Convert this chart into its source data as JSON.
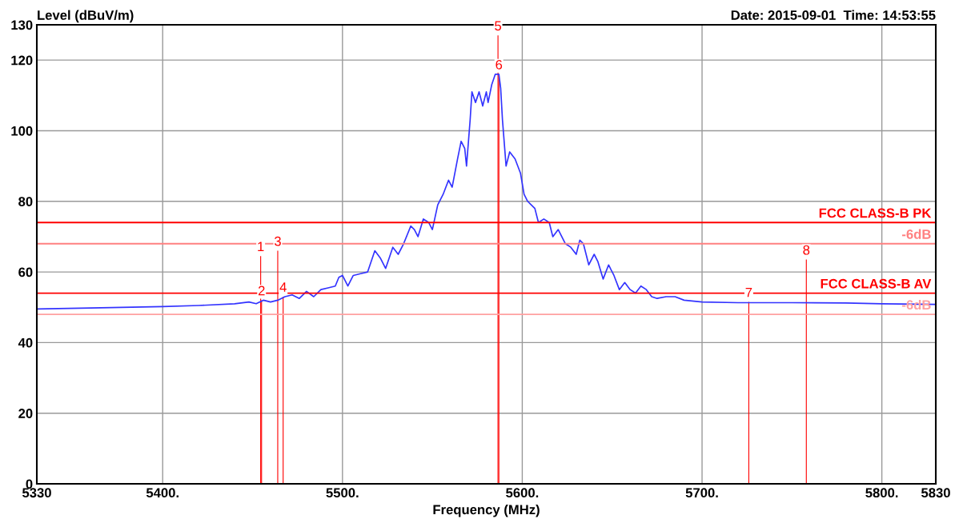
{
  "chart_data": {
    "type": "line",
    "xlabel": "Frequency (MHz)",
    "ylabel": "Level (dBuV/m)",
    "xlim": [
      5330,
      5830
    ],
    "xticks": [
      5330,
      {
        "value": 5400,
        "label": "5400."
      },
      {
        "value": 5500,
        "label": "5500."
      },
      {
        "value": 5600,
        "label": "5600."
      },
      {
        "value": 5700,
        "label": "5700."
      },
      {
        "value": 5800,
        "label": "5800."
      },
      5830
    ],
    "ylim": [
      0,
      130
    ],
    "yticks": [
      0,
      20,
      40,
      60,
      80,
      100,
      120,
      130
    ],
    "grid": true,
    "line_style": "solid",
    "series": [
      {
        "color": "#3333ff",
        "x": [
          5330,
          5360,
          5400,
          5420,
          5440,
          5448,
          5452,
          5456,
          5460,
          5464,
          5468,
          5472,
          5476,
          5480,
          5484,
          5488,
          5492,
          5496,
          5498,
          5500,
          5503,
          5506,
          5510,
          5514,
          5518,
          5521,
          5524,
          5528,
          5531,
          5534,
          5538,
          5540,
          5542,
          5545,
          5548,
          5550,
          5553,
          5556,
          5559,
          5561,
          5564,
          5566,
          5568,
          5569,
          5571,
          5572,
          5574,
          5576,
          5578,
          5580,
          5581,
          5583,
          5585,
          5587,
          5588,
          5589,
          5591,
          5593,
          5596,
          5599,
          5601,
          5603,
          5607,
          5609,
          5612,
          5615,
          5617,
          5620,
          5624,
          5627,
          5630,
          5632,
          5634,
          5637,
          5640,
          5642,
          5645,
          5648,
          5651,
          5654,
          5657,
          5660,
          5663,
          5666,
          5669,
          5672,
          5675,
          5680,
          5685,
          5690,
          5700,
          5720,
          5750,
          5780,
          5800,
          5830
        ],
        "values": [
          49.5,
          49.8,
          50.2,
          50.5,
          51,
          51.5,
          51,
          52,
          51.5,
          52,
          53,
          53.5,
          52.5,
          54.5,
          53,
          55,
          55.5,
          56,
          58.5,
          59,
          56,
          59,
          59.5,
          60,
          66,
          64,
          61,
          67,
          65,
          68,
          73,
          72,
          70,
          75,
          74,
          72,
          79,
          82,
          86,
          84,
          92,
          97,
          95,
          90,
          103,
          111,
          108,
          111,
          107,
          111,
          108,
          113,
          116,
          116,
          112,
          103,
          90,
          94,
          92,
          88,
          82,
          80,
          78,
          74,
          75,
          74,
          70,
          72,
          68,
          67,
          65,
          69,
          68,
          62,
          65,
          63,
          58,
          62,
          59,
          55,
          57,
          55,
          54,
          56,
          55,
          53,
          52.5,
          53,
          53,
          52,
          51.5,
          51.3,
          51.3,
          51.2,
          51,
          50.8
        ]
      },
      {
        "type": "bar",
        "color": "#ff0000",
        "x": [
          5454.5,
          5455,
          5464,
          5467,
          5586.5,
          5587,
          5726,
          5758
        ],
        "values": [
          64.5,
          52,
          66,
          53,
          127,
          116,
          51.5,
          63.5
        ]
      }
    ],
    "annotations": [
      "Date: 2015-09-01  Time: 14:53:55",
      {
        "text": "1",
        "x": 5454.5,
        "y": 64.5
      },
      {
        "text": "2",
        "x": 5455,
        "y": 52
      },
      {
        "text": "3",
        "x": 5464,
        "y": 66
      },
      {
        "text": "4",
        "x": 5467,
        "y": 53
      },
      {
        "text": "5",
        "x": 5586.5,
        "y": 127
      },
      {
        "text": "6",
        "x": 5587,
        "y": 116
      },
      {
        "text": "7",
        "x": 5726,
        "y": 51.5
      },
      {
        "text": "8",
        "x": 5758,
        "y": 63.5
      }
    ],
    "ref_lines": [
      {
        "axis": "y",
        "value": 74,
        "label": "FCC CLASS-B PK",
        "color": "#ff0000"
      },
      {
        "axis": "y",
        "value": 68,
        "label": "-6dB",
        "color": "#ff8080"
      },
      {
        "axis": "y",
        "value": 54,
        "label": "FCC CLASS-B AV",
        "color": "#ff0000"
      },
      {
        "axis": "y",
        "value": 48,
        "label": "-6dB",
        "color": "#ffa0a0"
      }
    ]
  }
}
